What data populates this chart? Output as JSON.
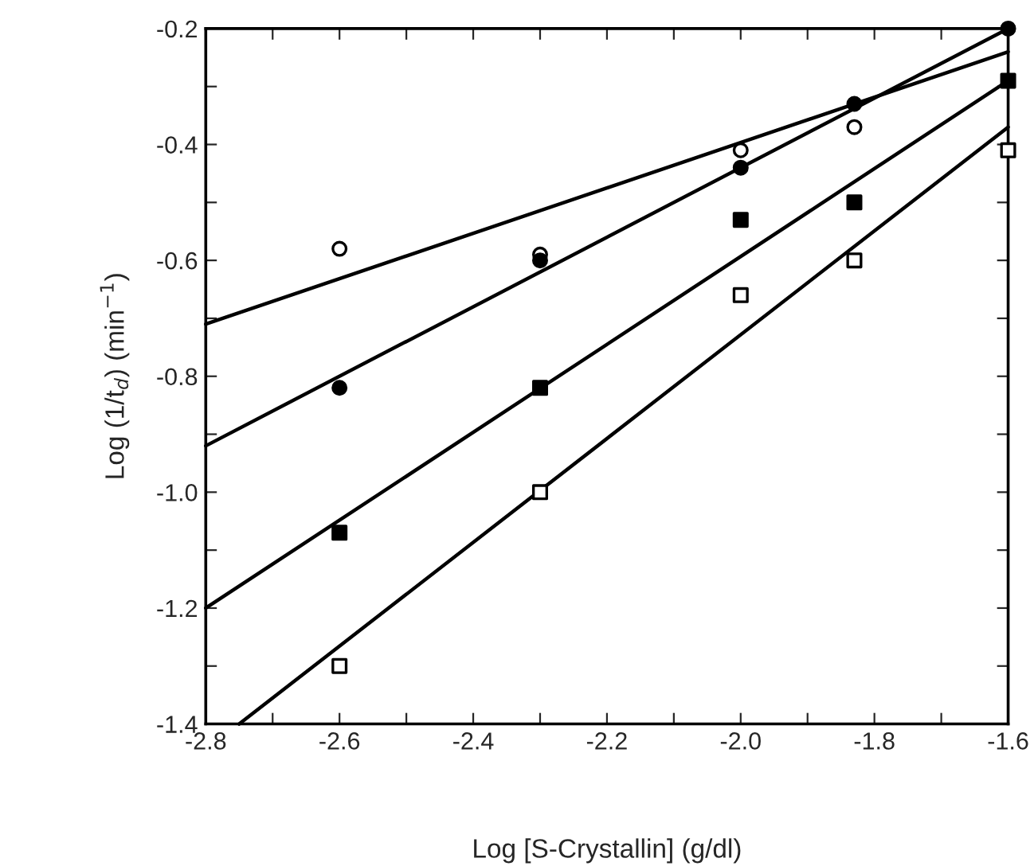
{
  "chart_data": {
    "type": "scatter",
    "xlabel": "Log [S-Crystallin] (g/dl)",
    "ylabel": "Log (1/t$_{d}$) (min$^{−1}$)",
    "xlim": [
      -2.8,
      -1.6
    ],
    "ylim": [
      -1.4,
      -0.2
    ],
    "xticks": [
      -2.8,
      {
        "value": -2.7,
        "label": null
      },
      -2.6,
      {
        "value": -2.5,
        "label": null
      },
      -2.4,
      {
        "value": -2.3,
        "label": null
      },
      -2.2,
      {
        "value": -2.1,
        "label": null
      },
      {
        "value": -2.0,
        "label": "-2.0"
      },
      {
        "value": -1.9,
        "label": null
      },
      -1.8,
      {
        "value": -1.7,
        "label": null
      },
      -1.6
    ],
    "yticks": [
      -1.4,
      {
        "value": -1.3,
        "label": null
      },
      -1.2,
      {
        "value": -1.1,
        "label": null
      },
      {
        "value": -1.0,
        "label": "-1.0"
      },
      {
        "value": -0.9,
        "label": null
      },
      -0.8,
      {
        "value": -0.7,
        "label": null
      },
      -0.6,
      {
        "value": -0.5,
        "label": null
      },
      -0.4,
      {
        "value": -0.3,
        "label": null
      },
      -0.2
    ],
    "grid": false,
    "legend": false,
    "series": [
      {
        "type": "line",
        "color": "#000000",
        "marker": "none",
        "line_style": "solid",
        "x": [
          -2.8,
          -1.6
        ],
        "values": [
          -0.71,
          -0.24
        ]
      },
      {
        "type": "line",
        "color": "#000000",
        "marker": "none",
        "line_style": "solid",
        "x": [
          -2.8,
          -1.6
        ],
        "values": [
          -0.92,
          -0.2
        ]
      },
      {
        "type": "line",
        "color": "#000000",
        "marker": "none",
        "line_style": "solid",
        "x": [
          -2.8,
          -1.6
        ],
        "values": [
          -1.2,
          -0.29
        ]
      },
      {
        "type": "line",
        "color": "#000000",
        "marker": "none",
        "line_style": "solid",
        "x": [
          -2.75,
          -1.6
        ],
        "values": [
          -1.4,
          -0.37
        ]
      },
      {
        "color": "#ffffff",
        "marker": "circle",
        "x": [
          -2.6,
          -2.3,
          -2.0,
          -1.83
        ],
        "values": [
          -0.58,
          -0.59,
          -0.41,
          -0.37
        ]
      },
      {
        "color": "#000000",
        "marker": "circle",
        "x": [
          -2.6,
          -2.3,
          -2.0,
          -1.83,
          -1.6
        ],
        "values": [
          -0.82,
          -0.6,
          -0.44,
          -0.33,
          -0.2
        ]
      },
      {
        "color": "#000000",
        "marker": "square",
        "x": [
          -2.6,
          -2.3,
          -2.0,
          -1.83,
          -1.6
        ],
        "values": [
          -1.07,
          -0.82,
          -0.53,
          -0.5,
          -0.29
        ]
      },
      {
        "color": "#ffffff",
        "marker": "square",
        "x": [
          -2.6,
          -2.3,
          -2.0,
          -1.83,
          -1.6
        ],
        "values": [
          -1.3,
          -1.0,
          -0.66,
          -0.6,
          -0.41
        ]
      }
    ]
  }
}
